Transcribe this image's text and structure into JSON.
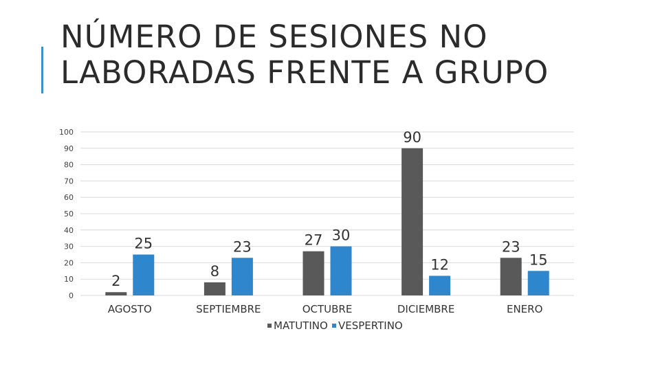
{
  "slide": {
    "title": "NÚMERO DE SESIONES NO LABORADAS FRENTE A GRUPO"
  },
  "colors": {
    "accent": "#3a8fc9",
    "matutino": "#595959",
    "vespertino": "#2e86cd",
    "grid": "#d9d9d9"
  },
  "chart_data": {
    "type": "bar",
    "title": "NÚMERO DE SESIONES NO LABORADAS FRENTE A GRUPO",
    "categories": [
      "AGOSTO",
      "SEPTIEMBRE",
      "OCTUBRE",
      "DICIEMBRE",
      "ENERO"
    ],
    "series": [
      {
        "name": "MATUTINO",
        "color": "#595959",
        "values": [
          2,
          8,
          27,
          90,
          23
        ]
      },
      {
        "name": "VESPERTINO",
        "color": "#2e86cd",
        "values": [
          25,
          23,
          30,
          12,
          15
        ]
      }
    ],
    "yticks": [
      0,
      10,
      20,
      30,
      40,
      50,
      60,
      70,
      80,
      90,
      100
    ],
    "ylim": [
      0,
      100
    ],
    "xlabel": "",
    "ylabel": "",
    "grid": true,
    "legend": "bottom"
  }
}
